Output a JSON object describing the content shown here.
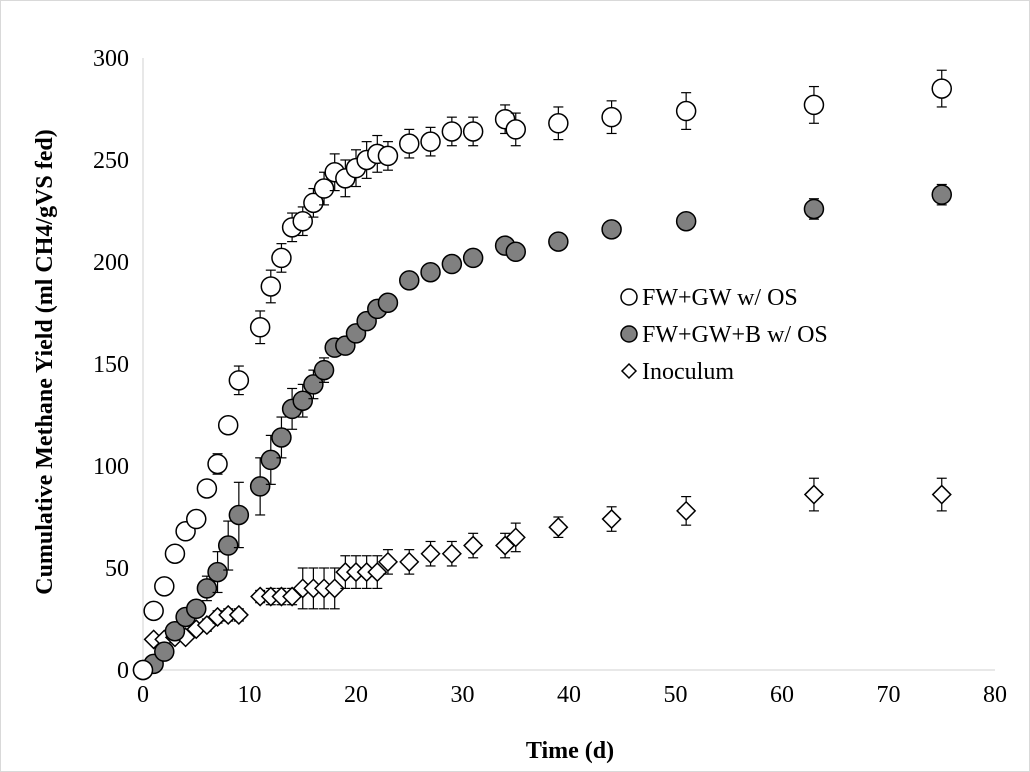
{
  "chart_data": {
    "type": "scatter",
    "title": "",
    "xlabel": "Time (d)",
    "ylabel": "Cumulative Methane Yield (ml CH4/gVS fed)",
    "xlim": [
      0,
      80
    ],
    "ylim": [
      0,
      300
    ],
    "xticks": [
      0,
      10,
      20,
      30,
      40,
      50,
      60,
      70,
      80
    ],
    "yticks": [
      0,
      50,
      100,
      150,
      200,
      250,
      300
    ],
    "grid": false,
    "legend_position": "middle-right",
    "series": [
      {
        "name": "FW+GW w/ OS",
        "marker": "circle-open",
        "color": "#000000",
        "fill": "#ffffff",
        "x": [
          0,
          1,
          2,
          3,
          4,
          5,
          6,
          7,
          8,
          9,
          11,
          12,
          13,
          14,
          15,
          16,
          17,
          18,
          19,
          20,
          21,
          22,
          23,
          25,
          27,
          29,
          31,
          34,
          35,
          39,
          44,
          51,
          63,
          75
        ],
        "y": [
          0,
          29,
          41,
          57,
          68,
          74,
          89,
          101,
          120,
          142,
          168,
          188,
          202,
          217,
          220,
          229,
          236,
          244,
          241,
          246,
          250,
          253,
          252,
          258,
          259,
          264,
          264,
          270,
          265,
          268,
          271,
          274,
          277,
          285
        ],
        "err": [
          0,
          3,
          3,
          3,
          3,
          4,
          4,
          5,
          4,
          7,
          8,
          8,
          7,
          7,
          7,
          7,
          8,
          9,
          9,
          9,
          9,
          9,
          7,
          7,
          7,
          7,
          7,
          7,
          8,
          8,
          8,
          9,
          9,
          9
        ]
      },
      {
        "name": "FW+GW+B w/ OS",
        "marker": "circle-filled",
        "color": "#000000",
        "fill": "#808080",
        "x": [
          0,
          1,
          2,
          3,
          4,
          5,
          6,
          7,
          8,
          9,
          11,
          12,
          13,
          14,
          15,
          16,
          17,
          18,
          19,
          20,
          21,
          22,
          23,
          25,
          27,
          29,
          31,
          34,
          35,
          39,
          44,
          51,
          63,
          75
        ],
        "y": [
          0,
          3,
          9,
          19,
          26,
          30,
          40,
          48,
          61,
          76,
          90,
          103,
          114,
          128,
          132,
          140,
          147,
          158,
          159,
          165,
          171,
          177,
          180,
          191,
          195,
          199,
          202,
          208,
          205,
          210,
          216,
          220,
          226,
          233
        ],
        "err": [
          0,
          2,
          3,
          3,
          4,
          4,
          6,
          10,
          12,
          16,
          14,
          12,
          10,
          10,
          8,
          7,
          6,
          3,
          3,
          3,
          3,
          3,
          3,
          3,
          3,
          3,
          3,
          3,
          3,
          3,
          3,
          3,
          5,
          5
        ]
      },
      {
        "name": "Inoculum",
        "marker": "diamond-open",
        "color": "#000000",
        "fill": "#ffffff",
        "x": [
          0,
          1,
          2,
          3,
          4,
          5,
          6,
          7,
          8,
          9,
          11,
          12,
          13,
          14,
          15,
          16,
          17,
          18,
          19,
          20,
          21,
          22,
          23,
          25,
          27,
          29,
          31,
          34,
          35,
          39,
          44,
          51,
          63,
          75
        ],
        "y": [
          0,
          15,
          15,
          16,
          16,
          20,
          22,
          26,
          27,
          27,
          36,
          36,
          36,
          36,
          40,
          40,
          40,
          40,
          48,
          48,
          48,
          48,
          53,
          53,
          57,
          57,
          61,
          61,
          65,
          70,
          74,
          78,
          86,
          86
        ],
        "err": [
          0,
          2,
          2,
          2,
          2,
          2,
          3,
          3,
          3,
          3,
          3,
          4,
          4,
          4,
          10,
          10,
          10,
          10,
          8,
          8,
          8,
          8,
          6,
          6,
          6,
          6,
          6,
          6,
          7,
          5,
          6,
          7,
          8,
          8
        ]
      }
    ]
  }
}
